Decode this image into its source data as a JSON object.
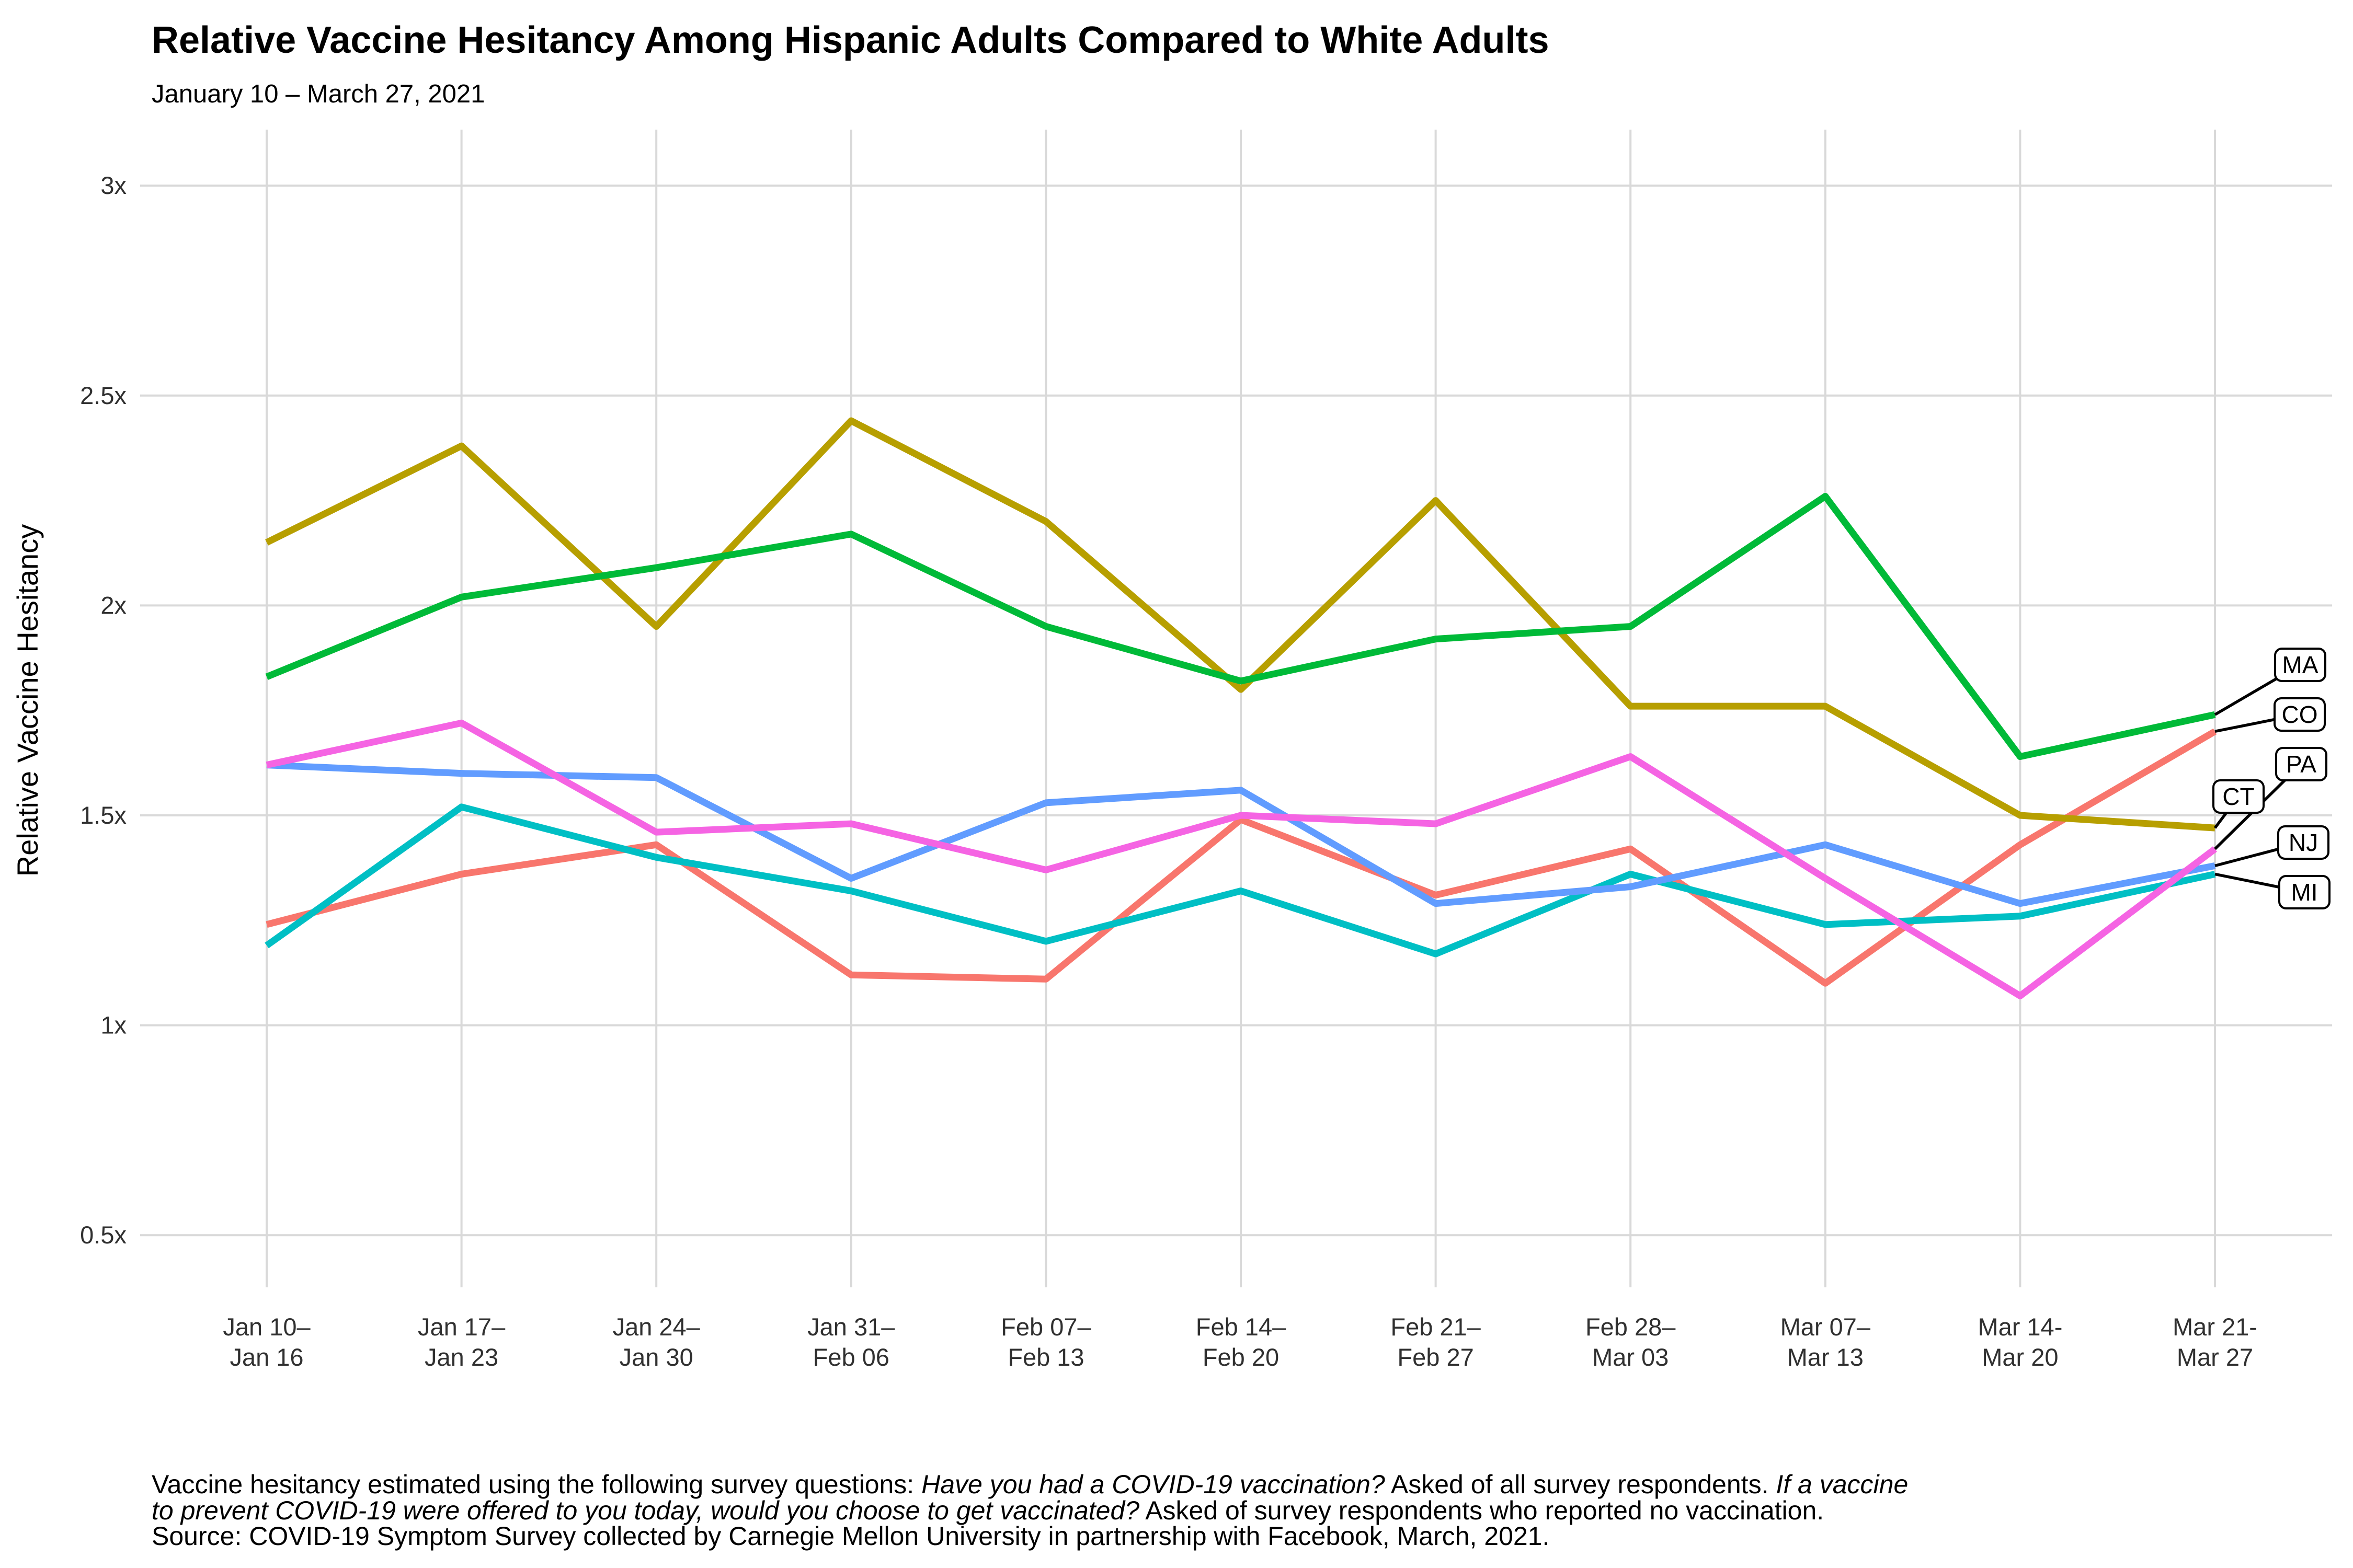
{
  "chart_data": {
    "type": "line",
    "title": "Relative Vaccine Hesitancy Among Hispanic Adults Compared to White Adults",
    "subtitle": "January 10 – March 27, 2021",
    "ylabel": "Relative Vaccine Hesitancy",
    "xlabel": "",
    "ylim": [
      0.5,
      3
    ],
    "grid": "both",
    "legend_position": "right-end-labels",
    "yticks": [
      {
        "value": 0.5,
        "label": "0.5x"
      },
      {
        "value": 1,
        "label": "1x"
      },
      {
        "value": 1.5,
        "label": "1.5x"
      },
      {
        "value": 2,
        "label": "2x"
      },
      {
        "value": 2.5,
        "label": "2.5x"
      },
      {
        "value": 3,
        "label": "3x"
      }
    ],
    "categories": [
      "Jan 10–Jan 16",
      "Jan 17–Jan 23",
      "Jan 24–Jan 30",
      "Jan 31–Feb 06",
      "Feb 07–Feb 13",
      "Feb 14–Feb 20",
      "Feb 21–Feb 27",
      "Feb 28–Mar 03",
      "Mar 07–Mar 13",
      "Mar 14-Mar 20",
      "Mar 21-Mar 27"
    ],
    "category_label_lines": [
      [
        "Jan 10–",
        "Jan 16"
      ],
      [
        "Jan 17–",
        "Jan 23"
      ],
      [
        "Jan 24–",
        "Jan 30"
      ],
      [
        "Jan 31–",
        "Feb 06"
      ],
      [
        "Feb 07–",
        "Feb 13"
      ],
      [
        "Feb 14–",
        "Feb 20"
      ],
      [
        "Feb 21–",
        "Feb 27"
      ],
      [
        "Feb 28–",
        "Mar 03"
      ],
      [
        "Mar 07–",
        "Mar 13"
      ],
      [
        "Mar 14-",
        "Mar 20"
      ],
      [
        "Mar 21-",
        "Mar 27"
      ]
    ],
    "series": [
      {
        "name": "CO",
        "color": "#F8766D",
        "values": [
          1.24,
          1.36,
          1.43,
          1.12,
          1.11,
          1.49,
          1.31,
          1.42,
          1.1,
          1.43,
          1.7
        ]
      },
      {
        "name": "CT",
        "color": "#B79F00",
        "values": [
          2.15,
          2.38,
          1.95,
          2.44,
          2.2,
          1.8,
          2.25,
          1.76,
          1.76,
          1.5,
          1.47
        ]
      },
      {
        "name": "MA",
        "color": "#00BA38",
        "values": [
          1.83,
          2.02,
          2.09,
          2.17,
          1.95,
          1.82,
          1.92,
          1.95,
          2.26,
          1.64,
          1.74
        ]
      },
      {
        "name": "MI",
        "color": "#00BFC4",
        "values": [
          1.19,
          1.52,
          1.4,
          1.32,
          1.2,
          1.32,
          1.17,
          1.36,
          1.24,
          1.26,
          1.36
        ]
      },
      {
        "name": "NJ",
        "color": "#619CFF",
        "values": [
          1.62,
          1.6,
          1.59,
          1.35,
          1.53,
          1.56,
          1.29,
          1.33,
          1.43,
          1.29,
          1.38
        ]
      },
      {
        "name": "PA",
        "color": "#F564E3",
        "values": [
          1.62,
          1.72,
          1.46,
          1.48,
          1.37,
          1.5,
          1.48,
          1.64,
          1.35,
          1.07,
          1.42
        ]
      }
    ],
    "end_labels": [
      "MA",
      "CO",
      "PA",
      "CT",
      "NJ",
      "MI"
    ],
    "gridline_color": "#D9D9D9",
    "axis_text_color": "#303030",
    "footnote_lines": [
      {
        "segments": [
          {
            "text": "Vaccine hesitancy estimated using the following survey questions: ",
            "italic": false
          },
          {
            "text": "Have you had a COVID-19 vaccination?",
            "italic": true
          },
          {
            "text": " Asked of all survey respondents. ",
            "italic": false
          },
          {
            "text": "If a vaccine",
            "italic": true
          }
        ]
      },
      {
        "segments": [
          {
            "text": "to prevent COVID-19 were offered to you today, would you choose to get vaccinated?",
            "italic": true
          },
          {
            "text": " Asked of survey respondents who reported no vaccination.",
            "italic": false
          }
        ]
      },
      {
        "segments": [
          {
            "text": "Source: COVID-19 Symptom Survey collected by Carnegie Mellon University in partnership with Facebook, March, 2021.",
            "italic": false
          }
        ]
      }
    ]
  }
}
